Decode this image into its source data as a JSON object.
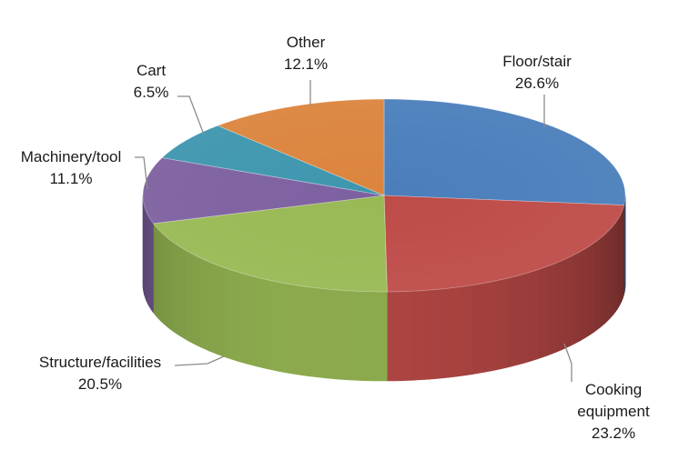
{
  "chart_data": {
    "type": "pie",
    "title": "",
    "slices": [
      {
        "name": "Floor/stair",
        "label_lines": [
          "Floor/stair"
        ],
        "value": 26.6,
        "value_label": "26.6%",
        "color": "#4a7ebb"
      },
      {
        "name": "Cooking equipment",
        "label_lines": [
          "Cooking",
          "equipment"
        ],
        "value": 23.2,
        "value_label": "23.2%",
        "color": "#be4b48"
      },
      {
        "name": "Structure/facilities",
        "label_lines": [
          "Structure/facilities"
        ],
        "value": 20.5,
        "value_label": "20.5%",
        "color": "#98b954"
      },
      {
        "name": "Machinery/tool",
        "label_lines": [
          "Machinery/tool"
        ],
        "value": 11.1,
        "value_label": "11.1%",
        "color": "#7d60a0"
      },
      {
        "name": "Cart",
        "label_lines": [
          "Cart"
        ],
        "value": 6.5,
        "value_label": "6.5%",
        "color": "#3d96ae"
      },
      {
        "name": "Other",
        "label_lines": [
          "Other"
        ],
        "value": 12.1,
        "value_label": "12.1%",
        "color": "#db843d"
      }
    ],
    "legend": "none",
    "style": "3d"
  }
}
